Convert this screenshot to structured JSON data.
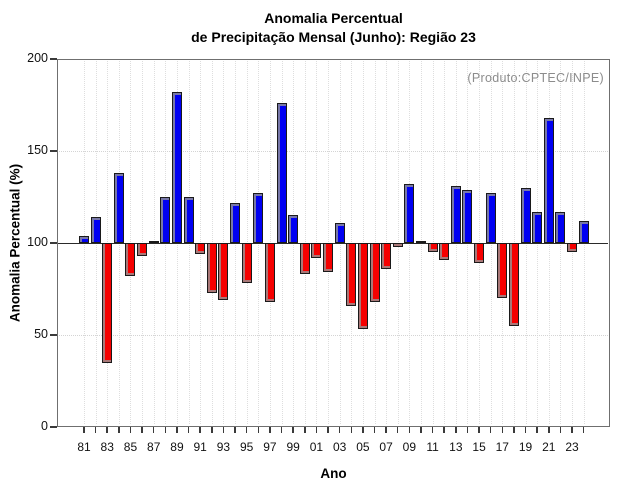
{
  "title": {
    "line1": "Anomalia Percentual",
    "line2": "de Precipitação Mensal (Junho): Região 23"
  },
  "annotation": "(Produto:CPTEC/INPE)",
  "axes": {
    "xlabel": "Ano",
    "ylabel": "Anomalia Percentual (%)",
    "yticks": [
      0,
      50,
      100,
      150,
      200
    ],
    "ylim": [
      0,
      200
    ],
    "baseline": 100,
    "xtick_label_every": 2
  },
  "colors": {
    "positive_bar": "#0000f2",
    "negative_bar": "#f50000",
    "baseline_line": "#2a2a2a",
    "frame": "#6f6f6f",
    "grid_dotted": "#dedede",
    "annotation_text": "#8c8c8c"
  },
  "chart_data": {
    "type": "bar",
    "title": "Anomalia Percentual de Precipitação Mensal (Junho): Região 23",
    "xlabel": "Ano",
    "ylabel": "Anomalia Percentual (%)",
    "ylim": [
      0,
      200
    ],
    "baseline": 100,
    "grid": "dotted, every year vertical; horizontal at 50 and 150",
    "legend": "none",
    "categories": [
      "81",
      "82",
      "83",
      "84",
      "85",
      "86",
      "87",
      "88",
      "89",
      "90",
      "91",
      "92",
      "93",
      "94",
      "95",
      "96",
      "97",
      "98",
      "99",
      "00",
      "01",
      "02",
      "03",
      "04",
      "05",
      "06",
      "07",
      "08",
      "09",
      "10",
      "11",
      "12",
      "13",
      "14",
      "15",
      "16",
      "17",
      "18",
      "19",
      "20",
      "21",
      "22",
      "23",
      "24"
    ],
    "values": [
      104,
      114,
      35,
      138,
      82,
      93,
      101,
      125,
      182,
      125,
      94,
      73,
      69,
      122,
      78,
      127,
      68,
      176,
      115,
      83,
      92,
      84,
      111,
      66,
      53,
      68,
      86,
      98,
      132,
      101,
      95,
      91,
      131,
      129,
      89,
      127,
      70,
      55,
      130,
      117,
      168,
      117,
      95,
      112
    ],
    "color_rule": "blue if value >= 100 else red"
  }
}
